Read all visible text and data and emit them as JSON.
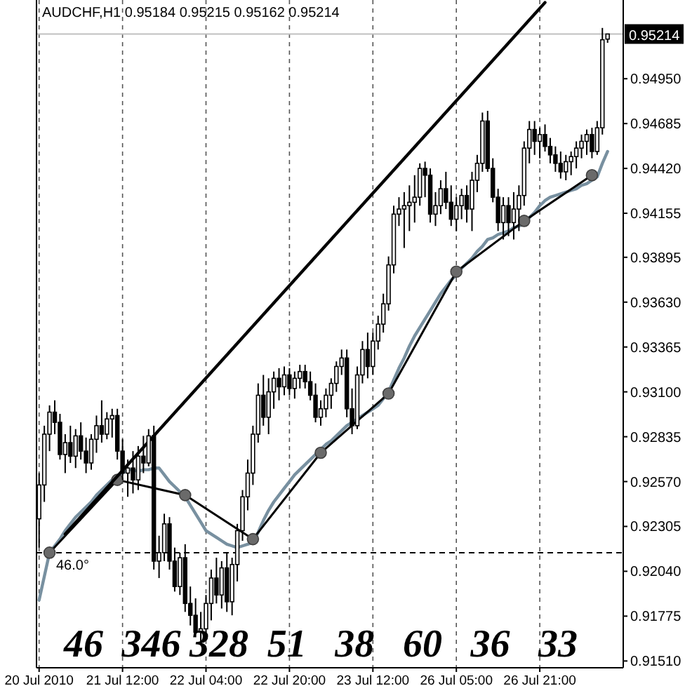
{
  "chart_data": {
    "type": "candlestick",
    "title": "AUDCHF,H1  0.95184 0.95215 0.95162 0.95214",
    "categories": [
      "20 Jul 2010",
      null,
      null,
      null,
      null,
      null,
      null,
      null,
      null,
      null,
      null,
      null,
      null,
      null,
      null,
      null,
      "21 Jul 12:00",
      null,
      null,
      null,
      null,
      null,
      null,
      null,
      null,
      null,
      null,
      null,
      null,
      null,
      null,
      null,
      "22 Jul 04:00",
      null,
      null,
      null,
      null,
      null,
      null,
      null,
      null,
      null,
      null,
      null,
      null,
      null,
      null,
      null,
      "22 Jul 20:00",
      null,
      null,
      null,
      null,
      null,
      null,
      null,
      null,
      null,
      null,
      null,
      null,
      null,
      null,
      null,
      "23 Jul 12:00",
      null,
      null,
      null,
      null,
      null,
      null,
      null,
      null,
      null,
      null,
      null,
      null,
      null,
      null,
      null,
      "26 Jul 05:00",
      null,
      null,
      null,
      null,
      null,
      null,
      null,
      null,
      null,
      null,
      null,
      null,
      null,
      null,
      null,
      "26 Jul 21:00",
      null,
      null,
      null,
      null,
      null,
      null,
      null,
      null,
      null,
      null,
      null,
      null,
      null
    ],
    "color": "#000000",
    "ohlc": [
      [
        0.9235,
        0.9262,
        0.9218,
        0.9255
      ],
      [
        0.9255,
        0.929,
        0.9245,
        0.9285
      ],
      [
        0.9285,
        0.9302,
        0.9275,
        0.9298
      ],
      [
        0.9298,
        0.9305,
        0.9285,
        0.9292
      ],
      [
        0.9292,
        0.9297,
        0.927,
        0.9273
      ],
      [
        0.9273,
        0.9285,
        0.9262,
        0.928
      ],
      [
        0.928,
        0.929,
        0.9268,
        0.9272
      ],
      [
        0.9272,
        0.9288,
        0.9265,
        0.9284
      ],
      [
        0.9284,
        0.9292,
        0.927,
        0.9275
      ],
      [
        0.9275,
        0.9283,
        0.9262,
        0.9268
      ],
      [
        0.9268,
        0.9285,
        0.9264,
        0.9282
      ],
      [
        0.9282,
        0.9296,
        0.9274,
        0.929
      ],
      [
        0.929,
        0.9305,
        0.928,
        0.9285
      ],
      [
        0.9285,
        0.9298,
        0.9282,
        0.9294
      ],
      [
        0.9294,
        0.93,
        0.9283,
        0.9296
      ],
      [
        0.9296,
        0.93,
        0.927,
        0.9275
      ],
      [
        0.9275,
        0.9282,
        0.9258,
        0.9262
      ],
      [
        0.9262,
        0.927,
        0.9248,
        0.9265
      ],
      [
        0.9265,
        0.9275,
        0.925,
        0.9258
      ],
      [
        0.9258,
        0.9278,
        0.9252,
        0.9272
      ],
      [
        0.9272,
        0.9284,
        0.9262,
        0.9268
      ],
      [
        0.9268,
        0.9288,
        0.9266,
        0.9284
      ],
      [
        0.9284,
        0.929,
        0.9205,
        0.921
      ],
      [
        0.921,
        0.9225,
        0.92,
        0.9215
      ],
      [
        0.9215,
        0.9238,
        0.921,
        0.9232
      ],
      [
        0.9232,
        0.9236,
        0.9205,
        0.921
      ],
      [
        0.921,
        0.9218,
        0.9192,
        0.9195
      ],
      [
        0.9195,
        0.9215,
        0.919,
        0.9212
      ],
      [
        0.9212,
        0.922,
        0.918,
        0.9185
      ],
      [
        0.9185,
        0.9195,
        0.9172,
        0.9178
      ],
      [
        0.9178,
        0.9188,
        0.9165,
        0.9168
      ],
      [
        0.9168,
        0.918,
        0.9162,
        0.917
      ],
      [
        0.917,
        0.919,
        0.9164,
        0.9185
      ],
      [
        0.9185,
        0.9205,
        0.9175,
        0.92
      ],
      [
        0.92,
        0.9212,
        0.9185,
        0.919
      ],
      [
        0.919,
        0.921,
        0.9182,
        0.9206
      ],
      [
        0.9206,
        0.9215,
        0.918,
        0.9186
      ],
      [
        0.9186,
        0.9212,
        0.9178,
        0.9208
      ],
      [
        0.9208,
        0.9232,
        0.9198,
        0.9228
      ],
      [
        0.9228,
        0.9252,
        0.9222,
        0.9248
      ],
      [
        0.9248,
        0.927,
        0.924,
        0.9262
      ],
      [
        0.9262,
        0.929,
        0.9255,
        0.9285
      ],
      [
        0.9285,
        0.9315,
        0.928,
        0.9308
      ],
      [
        0.9308,
        0.932,
        0.929,
        0.9295
      ],
      [
        0.9295,
        0.9318,
        0.9285,
        0.931
      ],
      [
        0.931,
        0.9322,
        0.93,
        0.9318
      ],
      [
        0.9318,
        0.9324,
        0.9305,
        0.9313
      ],
      [
        0.9313,
        0.9325,
        0.9308,
        0.932
      ],
      [
        0.932,
        0.9324,
        0.9308,
        0.9312
      ],
      [
        0.9312,
        0.9322,
        0.9306,
        0.9318
      ],
      [
        0.9318,
        0.9326,
        0.9312,
        0.9322
      ],
      [
        0.9322,
        0.9326,
        0.9312,
        0.9316
      ],
      [
        0.9316,
        0.9322,
        0.9305,
        0.9308
      ],
      [
        0.9308,
        0.9315,
        0.9292,
        0.9295
      ],
      [
        0.9295,
        0.9305,
        0.929,
        0.93
      ],
      [
        0.93,
        0.9312,
        0.9295,
        0.9308
      ],
      [
        0.9308,
        0.9318,
        0.93,
        0.9315
      ],
      [
        0.9315,
        0.9328,
        0.931,
        0.9325
      ],
      [
        0.9325,
        0.9335,
        0.932,
        0.933
      ],
      [
        0.933,
        0.9335,
        0.9295,
        0.93
      ],
      [
        0.93,
        0.9312,
        0.9285,
        0.929
      ],
      [
        0.929,
        0.9325,
        0.9288,
        0.932
      ],
      [
        0.932,
        0.934,
        0.9315,
        0.9335
      ],
      [
        0.9335,
        0.9345,
        0.9318,
        0.9325
      ],
      [
        0.9325,
        0.9345,
        0.932,
        0.934
      ],
      [
        0.934,
        0.9355,
        0.9335,
        0.935
      ],
      [
        0.935,
        0.9368,
        0.9345,
        0.9362
      ],
      [
        0.9362,
        0.939,
        0.9358,
        0.9385
      ],
      [
        0.9385,
        0.942,
        0.938,
        0.9415
      ],
      [
        0.9415,
        0.9425,
        0.9408,
        0.9418
      ],
      [
        0.9418,
        0.9428,
        0.9395,
        0.942
      ],
      [
        0.942,
        0.9432,
        0.9405,
        0.9422
      ],
      [
        0.9422,
        0.9438,
        0.941,
        0.9425
      ],
      [
        0.9425,
        0.9445,
        0.942,
        0.9442
      ],
      [
        0.9442,
        0.9446,
        0.9425,
        0.9438
      ],
      [
        0.9438,
        0.9442,
        0.941,
        0.9415
      ],
      [
        0.9415,
        0.9428,
        0.9408,
        0.942
      ],
      [
        0.942,
        0.9435,
        0.9415,
        0.943
      ],
      [
        0.943,
        0.944,
        0.9418,
        0.9422
      ],
      [
        0.9422,
        0.9432,
        0.9408,
        0.9412
      ],
      [
        0.9412,
        0.9425,
        0.9405,
        0.942
      ],
      [
        0.942,
        0.943,
        0.9412,
        0.9426
      ],
      [
        0.9426,
        0.9432,
        0.941,
        0.9418
      ],
      [
        0.9418,
        0.944,
        0.9405,
        0.9435
      ],
      [
        0.9435,
        0.945,
        0.9428,
        0.9445
      ],
      [
        0.9445,
        0.9475,
        0.944,
        0.947
      ],
      [
        0.947,
        0.9476,
        0.944,
        0.9442
      ],
      [
        0.9442,
        0.9448,
        0.9422,
        0.9425
      ],
      [
        0.9425,
        0.943,
        0.9405,
        0.941
      ],
      [
        0.941,
        0.9425,
        0.94,
        0.942
      ],
      [
        0.942,
        0.9425,
        0.9402,
        0.941
      ],
      [
        0.941,
        0.9428,
        0.94,
        0.9418
      ],
      [
        0.9418,
        0.9432,
        0.9405,
        0.9426
      ],
      [
        0.9426,
        0.9458,
        0.942,
        0.9454
      ],
      [
        0.9454,
        0.947,
        0.9445,
        0.9465
      ],
      [
        0.9465,
        0.947,
        0.945,
        0.9458
      ],
      [
        0.9458,
        0.9466,
        0.9448,
        0.9462
      ],
      [
        0.9462,
        0.9468,
        0.9452,
        0.9455
      ],
      [
        0.9455,
        0.946,
        0.9445,
        0.945
      ],
      [
        0.945,
        0.9455,
        0.944,
        0.9445
      ],
      [
        0.9445,
        0.9452,
        0.9436,
        0.944
      ],
      [
        0.944,
        0.945,
        0.9435,
        0.9446
      ],
      [
        0.9446,
        0.9452,
        0.9438,
        0.9449
      ],
      [
        0.9449,
        0.9458,
        0.9442,
        0.9454
      ],
      [
        0.9454,
        0.9462,
        0.9448,
        0.9458
      ],
      [
        0.9458,
        0.9465,
        0.945,
        0.9462
      ],
      [
        0.9462,
        0.9466,
        0.9448,
        0.9452
      ],
      [
        0.9452,
        0.947,
        0.945,
        0.9466
      ],
      [
        0.9466,
        0.9525,
        0.9462,
        0.9518
      ],
      [
        0.95184,
        0.95215,
        0.95162,
        0.95214
      ]
    ],
    "series": [
      {
        "type": "line",
        "color": "#7890a0",
        "values": [
          0.9187,
          0.9201,
          0.9215,
          0.9219,
          0.9223,
          0.9228,
          0.9232,
          0.9236,
          0.9239,
          0.9242,
          0.9245,
          0.9249,
          0.9252,
          0.9255,
          0.9258,
          0.926,
          0.9262,
          0.9264,
          0.9264,
          0.9263,
          0.9264,
          0.9264,
          0.9265,
          0.9265,
          0.9261,
          0.9257,
          0.9254,
          0.9251,
          0.9248,
          0.9243,
          0.9238,
          0.9233,
          0.9228,
          0.9226,
          0.9224,
          0.9222,
          0.922,
          0.9219,
          0.9218,
          0.9219,
          0.922,
          0.9221,
          0.9227,
          0.9234,
          0.924,
          0.9245,
          0.9249,
          0.9253,
          0.9257,
          0.9261,
          0.9264,
          0.9267,
          0.927,
          0.9273,
          0.9276,
          0.9279,
          0.9281,
          0.9284,
          0.9287,
          0.929,
          0.9292,
          0.9294,
          0.9296,
          0.9298,
          0.93,
          0.9302,
          0.9306,
          0.931,
          0.9317,
          0.9324,
          0.933,
          0.9337,
          0.9343,
          0.9348,
          0.9353,
          0.9358,
          0.9363,
          0.9368,
          0.9372,
          0.9376,
          0.9379,
          0.9383,
          0.9386,
          0.9389,
          0.9393,
          0.9396,
          0.94,
          0.9401,
          0.9403,
          0.9404,
          0.9405,
          0.9407,
          0.9408,
          0.9409,
          0.9413,
          0.9416,
          0.942,
          0.9423,
          0.9425,
          0.9426,
          0.9427,
          0.9428,
          0.9429,
          0.943,
          0.9432,
          0.9433,
          0.9435,
          0.9437,
          0.9445,
          0.9452
        ]
      },
      {
        "type": "line",
        "color": "#000000",
        "marker": "circle",
        "values": [
          null,
          null,
          0.9215,
          null,
          null,
          null,
          null,
          null,
          null,
          null,
          null,
          null,
          null,
          null,
          null,
          0.9258,
          null,
          null,
          null,
          null,
          null,
          null,
          null,
          null,
          null,
          null,
          null,
          null,
          0.9249,
          null,
          null,
          null,
          null,
          null,
          null,
          null,
          null,
          null,
          null,
          null,
          null,
          0.9223,
          null,
          null,
          null,
          null,
          null,
          null,
          null,
          null,
          null,
          null,
          null,
          null,
          0.9274,
          null,
          null,
          null,
          null,
          null,
          null,
          null,
          null,
          null,
          null,
          null,
          null,
          0.9309,
          null,
          null,
          null,
          null,
          null,
          null,
          null,
          null,
          null,
          null,
          null,
          null,
          0.9381,
          null,
          null,
          null,
          null,
          null,
          null,
          null,
          null,
          null,
          null,
          null,
          null,
          0.9411,
          null,
          null,
          null,
          null,
          null,
          null,
          null,
          null,
          null,
          null,
          null,
          null,
          0.9438,
          null,
          null,
          null
        ]
      },
      {
        "type": "line",
        "color": "#000000",
        "values": [
          null,
          null,
          null,
          null,
          null,
          0.9226,
          null,
          null,
          null,
          null,
          null,
          null,
          null,
          null,
          null,
          null,
          null,
          null,
          null,
          null,
          null,
          null,
          null,
          null,
          null,
          null,
          null,
          null,
          null,
          null,
          null,
          null,
          null,
          null,
          null,
          null,
          null,
          null,
          null,
          null,
          null,
          null,
          null,
          null,
          null,
          null,
          null,
          null,
          null,
          null,
          null,
          null,
          null,
          null,
          null,
          null,
          null,
          null,
          null,
          null,
          null,
          null,
          null,
          null,
          null,
          null,
          null,
          null,
          null,
          null,
          null,
          null,
          null,
          null,
          null,
          null,
          null,
          null,
          null,
          null,
          null,
          null,
          null,
          null,
          null,
          null,
          null,
          null,
          null,
          null,
          null,
          null,
          null,
          null,
          null,
          null,
          null,
          0.954,
          null,
          null,
          null,
          null,
          null,
          null,
          null,
          null,
          null,
          null,
          null,
          null
        ]
      }
    ],
    "ylim": [
      0.9147,
      0.95415
    ],
    "yticks": [
      {
        "value": 0.9151,
        "label": "0.91510"
      },
      {
        "value": 0.91775,
        "label": "0.91775"
      },
      {
        "value": 0.9204,
        "label": "0.92040"
      },
      {
        "value": 0.92305,
        "label": "0.92305"
      },
      {
        "value": 0.9257,
        "label": "0.92570"
      },
      {
        "value": 0.92835,
        "label": "0.92835"
      },
      {
        "value": 0.931,
        "label": "0.93100"
      },
      {
        "value": 0.93365,
        "label": "0.93365"
      },
      {
        "value": 0.9363,
        "label": "0.93630"
      },
      {
        "value": 0.93895,
        "label": "0.93895"
      },
      {
        "value": 0.94155,
        "label": "0.94155"
      },
      {
        "value": 0.9442,
        "label": "0.94420"
      },
      {
        "value": 0.94685,
        "label": "0.94685"
      },
      {
        "value": 0.9495,
        "label": "0.94950"
      }
    ],
    "grid": "x",
    "ref_lines": [
      {
        "axis": "y",
        "value": 0.9215,
        "line_style": "dashed",
        "color": "#000000"
      },
      {
        "axis": "y",
        "value": 0.95214,
        "label": "0.95214",
        "color": "#c0c0c0"
      }
    ],
    "annotations": [
      {
        "text": "46.0°",
        "y": 0.9215
      },
      "46",
      "346",
      "328",
      "51",
      "38",
      "60",
      "36",
      "33"
    ]
  }
}
